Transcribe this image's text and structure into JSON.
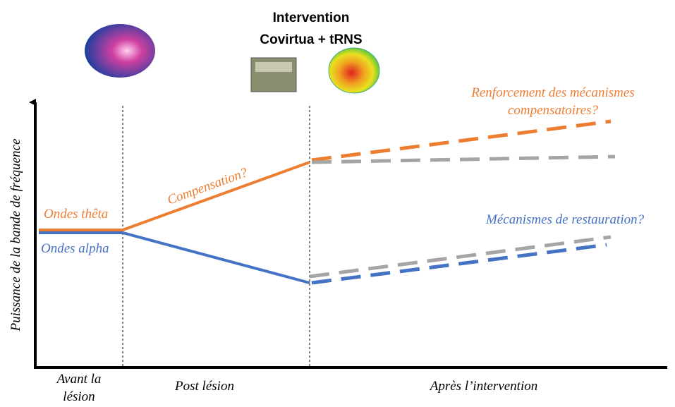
{
  "header": {
    "title_lines": [
      "Intervention",
      "Covirtua + tRNS"
    ]
  },
  "axis": {
    "y_label": "Puissance de la bande de fréquence",
    "phases": [
      [
        "Avant la",
        "lésion"
      ],
      [
        "Post lésion"
      ],
      [
        "Après l’intervention"
      ]
    ]
  },
  "annotations": {
    "reinforcement": [
      "Renforcement des mécanismes",
      "compensatoires?"
    ],
    "compensation": "Compensation?",
    "theta": "Ondes thêta",
    "alpha": "Ondes alpha",
    "restoration": "Mécanismes de restauration?"
  }
}
